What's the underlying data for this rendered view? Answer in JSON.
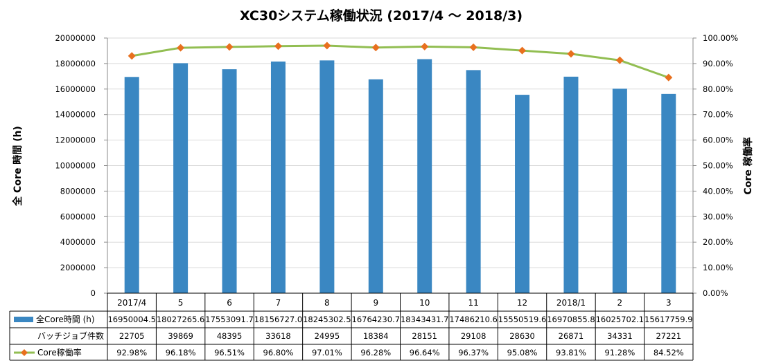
{
  "chart_data": {
    "type": "bar",
    "title": "XC30システム稼働状況 (2017/4 ～ 2018/3)",
    "ylabel": "全 Core 時間 (h)",
    "y2label": "Core 稼働率",
    "ylim": [
      0,
      20000000
    ],
    "y2lim": [
      0,
      1
    ],
    "yticks": [
      "0",
      "2000000",
      "4000000",
      "6000000",
      "8000000",
      "10000000",
      "12000000",
      "14000000",
      "16000000",
      "18000000",
      "20000000"
    ],
    "y2ticks": [
      "0.00%",
      "10.00%",
      "20.00%",
      "30.00%",
      "40.00%",
      "50.00%",
      "60.00%",
      "70.00%",
      "80.00%",
      "90.00%",
      "100.00%"
    ],
    "categories": [
      "2017/4",
      "5",
      "6",
      "7",
      "8",
      "9",
      "10",
      "11",
      "12",
      "2018/1",
      "2",
      "3"
    ],
    "grid": true,
    "legend": "table-left",
    "colors": {
      "bar": "#3a87c2",
      "line": "#92be52",
      "marker": "#e8701e",
      "grid": "#d9d9d9",
      "axis": "#888888"
    },
    "series": [
      {
        "name": "全Core時間 (h)",
        "type": "bar",
        "values": [
          16950004.5,
          18027265.6,
          17553091.7,
          18156727.0,
          18245302.5,
          16764230.7,
          18343431.7,
          17486210.6,
          15550519.6,
          16970855.8,
          16025702.1,
          15617759.9
        ],
        "labels": [
          "16950004.5",
          "18027265.6",
          "17553091.7",
          "18156727.0",
          "18245302.5",
          "16764230.7",
          "18343431.7",
          "17486210.6",
          "15550519.6",
          "16970855.8",
          "16025702.1",
          "15617759.9"
        ]
      },
      {
        "name": "バッチジョブ件数",
        "type": "table",
        "values": [
          22705,
          39869,
          48395,
          33618,
          24995,
          18384,
          28151,
          29108,
          28630,
          26871,
          34331,
          27221
        ],
        "labels": [
          "22705",
          "39869",
          "48395",
          "33618",
          "24995",
          "18384",
          "28151",
          "29108",
          "28630",
          "26871",
          "34331",
          "27221"
        ]
      },
      {
        "name": "Core稼働率",
        "type": "line",
        "axis": "right",
        "values": [
          0.9298,
          0.9618,
          0.9651,
          0.968,
          0.9701,
          0.9628,
          0.9664,
          0.9637,
          0.9508,
          0.9381,
          0.9128,
          0.8452
        ],
        "labels": [
          "92.98%",
          "96.18%",
          "96.51%",
          "96.80%",
          "97.01%",
          "96.28%",
          "96.64%",
          "96.37%",
          "95.08%",
          "93.81%",
          "91.28%",
          "84.52%"
        ]
      }
    ]
  }
}
